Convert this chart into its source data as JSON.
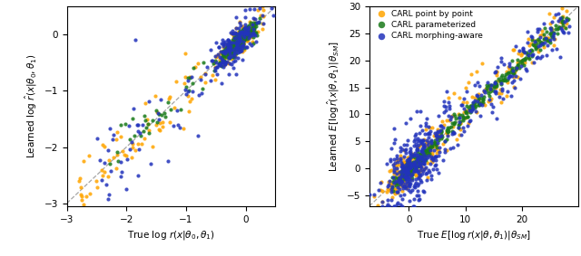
{
  "left": {
    "xlim": [
      -3,
      0.5
    ],
    "ylim": [
      -3.05,
      0.5
    ],
    "xlabel": "True log $r(x|\\theta_0, \\theta_1)$",
    "ylabel": "Learned log $\\hat{r}(x|\\theta_0, \\theta_1)$",
    "xticks": [
      -3,
      -2,
      -1,
      0
    ],
    "yticks": [
      -3,
      -2,
      -1,
      0
    ],
    "ytick_extra": 0.5,
    "diag_line": true
  },
  "right": {
    "xlim": [
      -7,
      30
    ],
    "ylim": [
      -7,
      30
    ],
    "xlabel": "True $E[\\log r(x|\\theta, \\theta_1)|\\theta_{SM}]$",
    "ylabel": "Learned $E[\\log \\hat{r}(x|\\theta, \\theta_1)|\\theta_{SM}]$",
    "xticks": [
      0,
      10,
      20
    ],
    "yticks": [
      -5,
      0,
      5,
      10,
      15,
      20,
      25,
      30
    ],
    "diag_line": true,
    "legend": [
      {
        "label": "CARL point by point",
        "color": "#FFA500"
      },
      {
        "label": "CARL parameterized",
        "color": "#1a7a1a"
      },
      {
        "label": "CARL morphing-aware",
        "color": "#2233bb"
      }
    ]
  },
  "colors": {
    "orange": "#FFA500",
    "green": "#1a7a1a",
    "blue": "#2233bb"
  },
  "seed": 42
}
